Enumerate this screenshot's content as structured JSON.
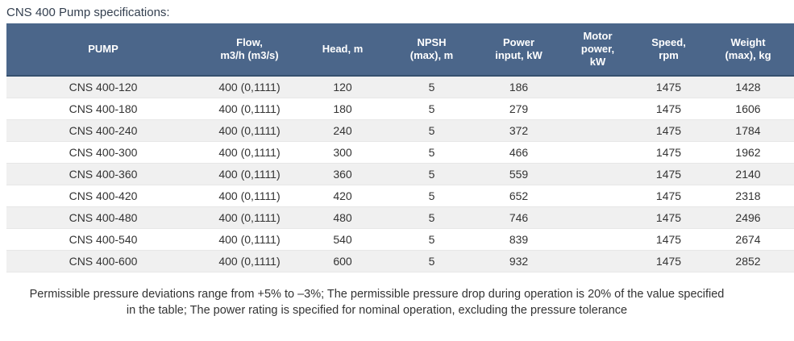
{
  "page": {
    "title": "CNS 400 Pump specifications:"
  },
  "colors": {
    "header_bg": "#4B668A",
    "header_border": "#35506E",
    "stripe": "#F0F0F0",
    "row_border": "#E7E7E7",
    "text": "#333333",
    "title_color": "#333F4F",
    "header_text": "#FFFFFF"
  },
  "table": {
    "columns": [
      {
        "key": "pump",
        "label": "PUMP"
      },
      {
        "key": "flow",
        "label": "Flow,\nm3/h (m3/s)"
      },
      {
        "key": "head",
        "label": "Head, m"
      },
      {
        "key": "npsh",
        "label": "NPSH\n(max), m"
      },
      {
        "key": "power",
        "label": "Power\ninput, kW"
      },
      {
        "key": "motor",
        "label": "Motor\npower,\nkW"
      },
      {
        "key": "speed",
        "label": "Speed,\nrpm"
      },
      {
        "key": "weight",
        "label": "Weight\n(max), kg"
      }
    ],
    "rows": [
      {
        "pump": "CNS 400-120",
        "flow": "400 (0,1111)",
        "head": "120",
        "npsh": "5",
        "power": "186",
        "motor": "",
        "speed": "1475",
        "weight": "1428"
      },
      {
        "pump": "CNS 400-180",
        "flow": "400 (0,1111)",
        "head": "180",
        "npsh": "5",
        "power": "279",
        "motor": "",
        "speed": "1475",
        "weight": "1606"
      },
      {
        "pump": "CNS 400-240",
        "flow": "400 (0,1111)",
        "head": "240",
        "npsh": "5",
        "power": "372",
        "motor": "",
        "speed": "1475",
        "weight": "1784"
      },
      {
        "pump": "CNS 400-300",
        "flow": "400 (0,1111)",
        "head": "300",
        "npsh": "5",
        "power": "466",
        "motor": "",
        "speed": "1475",
        "weight": "1962"
      },
      {
        "pump": "CNS 400-360",
        "flow": "400 (0,1111)",
        "head": "360",
        "npsh": "5",
        "power": "559",
        "motor": "",
        "speed": "1475",
        "weight": "2140"
      },
      {
        "pump": "CNS 400-420",
        "flow": "400 (0,1111)",
        "head": "420",
        "npsh": "5",
        "power": "652",
        "motor": "",
        "speed": "1475",
        "weight": "2318"
      },
      {
        "pump": "CNS 400-480",
        "flow": "400 (0,1111)",
        "head": "480",
        "npsh": "5",
        "power": "746",
        "motor": "",
        "speed": "1475",
        "weight": "2496"
      },
      {
        "pump": "CNS 400-540",
        "flow": "400 (0,1111)",
        "head": "540",
        "npsh": "5",
        "power": "839",
        "motor": "",
        "speed": "1475",
        "weight": "2674"
      },
      {
        "pump": "CNS 400-600",
        "flow": "400 (0,1111)",
        "head": "600",
        "npsh": "5",
        "power": "932",
        "motor": "",
        "speed": "1475",
        "weight": "2852"
      }
    ]
  },
  "footer": {
    "note": "Permissible pressure deviations range from +5% to –3%; The permissible pressure drop during operation is 20% of the value specified in the table; The power rating is specified for nominal operation, excluding the pressure tolerance"
  }
}
